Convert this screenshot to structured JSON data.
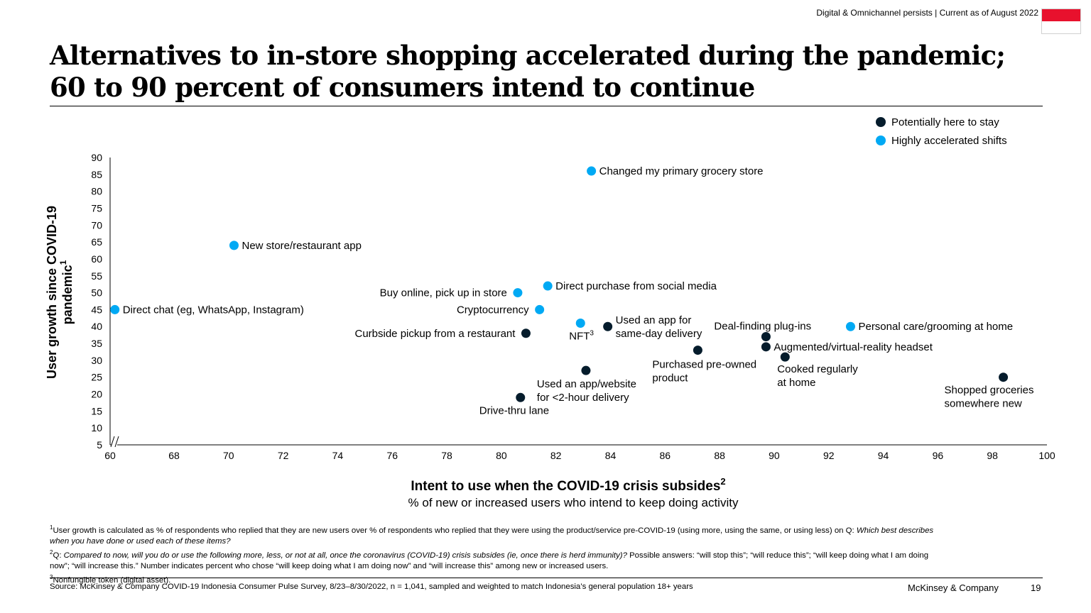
{
  "header": {
    "topline": "Digital & Omnichannel persists | Current as of August 2022",
    "title_line1": "Alternatives to in-store shopping accelerated during the pandemic;",
    "title_line2": "60 to 90 percent of consumers intend to continue"
  },
  "colors": {
    "dark": "#051c2c",
    "light": "#00a9f4",
    "flag_red": "#e8112d"
  },
  "chart_data": {
    "type": "scatter",
    "xlabel": "Intent to use when the COVID-19 crisis subsides",
    "xlabel_sup": "2",
    "xsublabel": "% of new or increased users who intend to keep doing activity",
    "ylabel_line1": "User growth since COVID-19",
    "ylabel_line2": "pandemic",
    "ylabel_sup": "1",
    "xlim": [
      60,
      100
    ],
    "ylim": [
      5,
      90
    ],
    "x_ticks": [
      60,
      68,
      70,
      72,
      74,
      76,
      78,
      80,
      82,
      84,
      86,
      88,
      90,
      92,
      94,
      96,
      98,
      100
    ],
    "y_ticks": [
      5,
      10,
      15,
      20,
      25,
      30,
      35,
      40,
      45,
      50,
      55,
      60,
      65,
      70,
      75,
      80,
      85,
      90
    ],
    "legend": [
      {
        "name": "Potentially here to stay",
        "color": "#051c2c"
      },
      {
        "name": "Highly accelerated shifts",
        "color": "#00a9f4"
      }
    ],
    "series": [
      {
        "name": "Potentially here to stay",
        "color": "#051c2c",
        "points": [
          {
            "label": [
              "Curbside pickup from a restaurant"
            ],
            "x": 80.9,
            "y": 38,
            "pos": "left"
          },
          {
            "label": [
              "Drive-thru lane"
            ],
            "x": 80.7,
            "y": 19,
            "pos": "below"
          },
          {
            "label": [
              "Used an app/website",
              "for <2-hour delivery"
            ],
            "x": 83.1,
            "y": 27,
            "pos": "below"
          },
          {
            "label": [
              "Used an app for",
              "same-day delivery"
            ],
            "x": 83.9,
            "y": 40,
            "pos": "right"
          },
          {
            "label": [
              "Purchased pre-owned",
              "product"
            ],
            "x": 87.2,
            "y": 33,
            "pos": "below"
          },
          {
            "label": [
              "Deal-finding plug-ins"
            ],
            "x": 89.7,
            "y": 37,
            "pos": "above-left"
          },
          {
            "label": [
              "Augmented/virtual-reality headset"
            ],
            "x": 89.7,
            "y": 34,
            "pos": "right"
          },
          {
            "label": [
              "Cooked regularly",
              "at home"
            ],
            "x": 90.4,
            "y": 31,
            "pos": "below"
          },
          {
            "label": [
              "Shopped groceries",
              "somewhere new"
            ],
            "x": 98.4,
            "y": 25,
            "pos": "below-left"
          }
        ]
      },
      {
        "name": "Highly accelerated shifts",
        "color": "#00a9f4",
        "points": [
          {
            "label": [
              "Direct chat (eg, WhatsApp, Instagram)"
            ],
            "x": 60.6,
            "y": 45,
            "pos": "right"
          },
          {
            "label": [
              "New store/restaurant app"
            ],
            "x": 70.2,
            "y": 64,
            "pos": "right"
          },
          {
            "label": [
              "Buy online, pick up in store"
            ],
            "x": 80.6,
            "y": 50,
            "pos": "left"
          },
          {
            "label": [
              "Cryptocurrency"
            ],
            "x": 81.4,
            "y": 45,
            "pos": "left"
          },
          {
            "label": [
              "Direct purchase from social media"
            ],
            "x": 81.7,
            "y": 52,
            "pos": "right"
          },
          {
            "label": [
              "Changed my primary grocery store"
            ],
            "x": 83.3,
            "y": 86,
            "pos": "right"
          },
          {
            "label": [
              "NFT"
            ],
            "label_sup": "3",
            "x": 82.9,
            "y": 41,
            "pos": "below"
          },
          {
            "label": [
              "Personal care/grooming at home"
            ],
            "x": 92.8,
            "y": 40,
            "pos": "right"
          }
        ]
      }
    ]
  },
  "footnotes": {
    "n1_sup": "1",
    "n1_text": "User growth is calculated as % of respondents who replied that they are new users over % of respondents who replied that they were using the product/service pre-COVID-19 (using more, using the same, or using less) on Q: ",
    "n1_italic": "Which best describes when you have done or used each of these items?",
    "n2_sup": "2",
    "n2_prefix": "Q: ",
    "n2_italic": "Compared to now, will you do or use the following more, less, or not at all, once the coronavirus (COVID-19) crisis subsides (ie, once there is herd immunity)?",
    "n2_text": " Possible answers: “will stop this”; “will reduce this”; “will keep doing what I am doing now”; “will increase this.” Number indicates percent who chose “will keep doing what I am doing now” and “will increase this” among new or increased users.",
    "n3_sup": "3",
    "n3_text": "Nonfungible token (digital asset)."
  },
  "footer": {
    "source": "Source: McKinsey & Company COVID-19 Indonesia Consumer Pulse Survey, 8/23–8/30/2022, n = 1,041, sampled and weighted to match Indonesia’s general population 18+ years",
    "brand": "McKinsey & Company",
    "page": "19"
  }
}
